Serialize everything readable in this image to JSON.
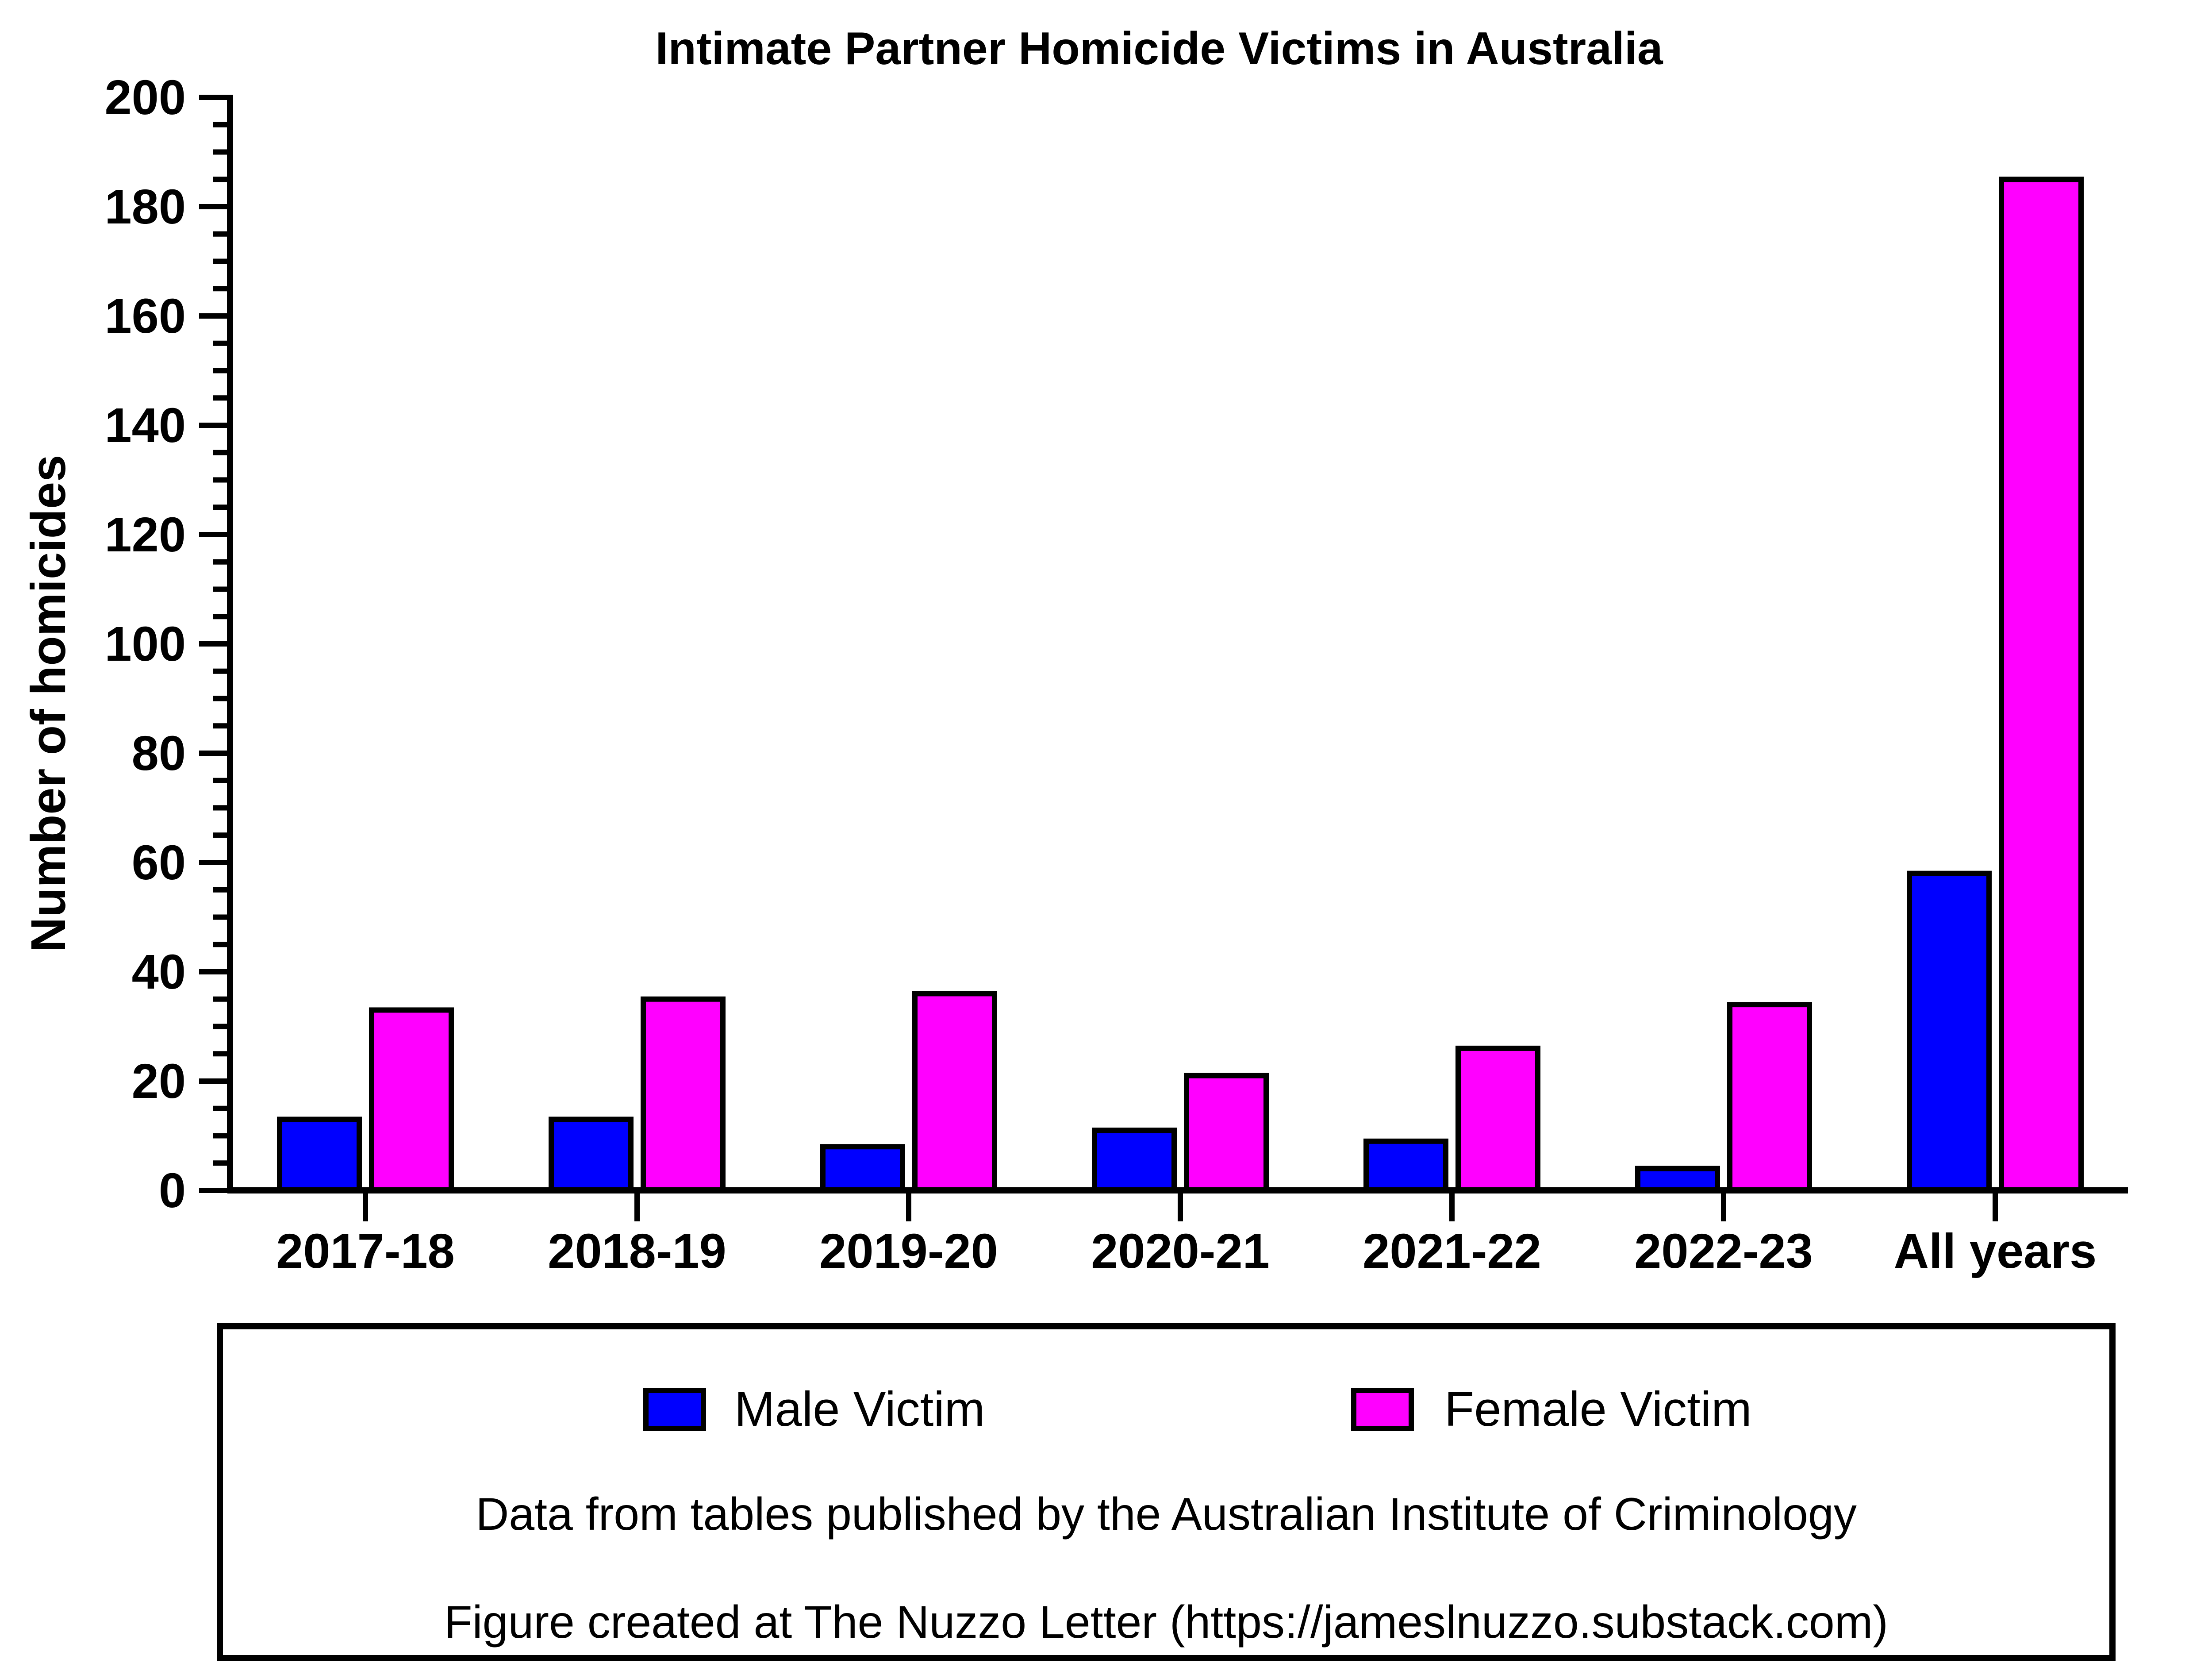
{
  "chart_data": {
    "type": "bar",
    "title": "Intimate Partner Homicide Victims in Australia",
    "xlabel": "",
    "ylabel": "Number of homicides",
    "ylim": [
      0,
      200
    ],
    "yticks": [
      0,
      20,
      40,
      60,
      80,
      100,
      120,
      140,
      160,
      180,
      200
    ],
    "y_minor_step": 5,
    "categories": [
      "2017-18",
      "2018-19",
      "2019-20",
      "2020-21",
      "2021-22",
      "2022-23",
      "All years"
    ],
    "series": [
      {
        "name": "Male Victim",
        "color": "#0000ff",
        "values": [
          13,
          13,
          8,
          11,
          9,
          4,
          58
        ]
      },
      {
        "name": "Female Victim",
        "color": "#ff00ff",
        "values": [
          33,
          35,
          36,
          21,
          26,
          34,
          185
        ]
      }
    ],
    "grid": false,
    "legend_position": "bottom"
  },
  "notes": [
    "Data from tables published by the Australian Institute of Criminology",
    "Figure created at The Nuzzo Letter (https://jameslnuzzo.substack.com)"
  ],
  "colors": {
    "axis": "#000000",
    "bar_outline": "#000000"
  }
}
